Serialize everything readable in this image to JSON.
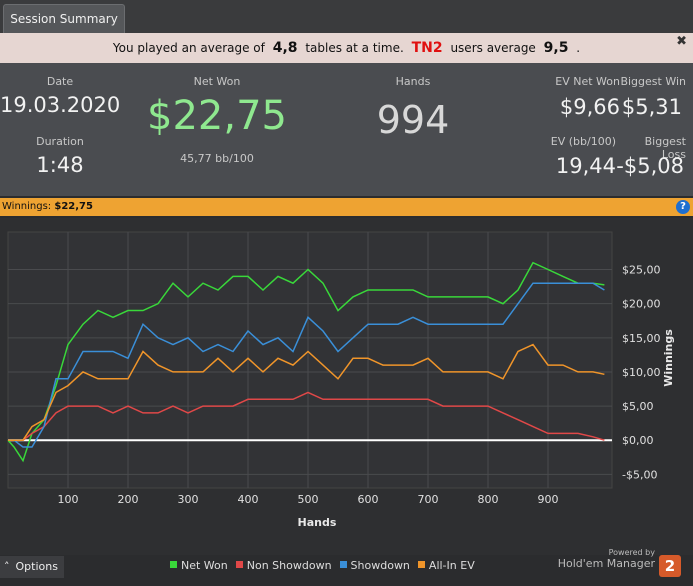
{
  "tab": "Session Summary",
  "banner": {
    "parts": [
      "You played an average of",
      "4,8",
      "tables at a time.",
      "TN2",
      "users average",
      "9,5",
      "."
    ]
  },
  "stats": {
    "date": {
      "label": "Date",
      "value": "19.03.2020"
    },
    "duration": {
      "label": "Duration",
      "value": "1:48"
    },
    "net_won": {
      "label": "Net Won",
      "value": "$22,75",
      "sub": "45,77 bb/100"
    },
    "hands": {
      "label": "Hands",
      "value": "994"
    },
    "ev_net_won": {
      "label": "EV Net Won",
      "value": "$9,66"
    },
    "biggest_win": {
      "label": "Biggest Win",
      "value": "$5,31"
    },
    "ev_bb": {
      "label": "EV (bb/100)",
      "value": "19,44"
    },
    "biggest_loss": {
      "label": "Biggest Loss",
      "value": "-$5,08"
    }
  },
  "winnings_bar": {
    "label": "Winnings:",
    "value": "$22,75"
  },
  "chart_data": {
    "type": "line",
    "xlabel": "Hands",
    "ylabel": "Winnings",
    "x": [
      0,
      10,
      25,
      40,
      60,
      80,
      100,
      125,
      150,
      175,
      200,
      225,
      250,
      275,
      300,
      325,
      350,
      375,
      400,
      425,
      450,
      475,
      500,
      525,
      550,
      575,
      600,
      625,
      650,
      675,
      700,
      725,
      750,
      775,
      800,
      825,
      850,
      875,
      900,
      925,
      950,
      975,
      994
    ],
    "xlim": [
      0,
      1000
    ],
    "xticks": [
      100,
      200,
      300,
      400,
      500,
      600,
      700,
      800,
      900
    ],
    "ylim": [
      -7,
      30.5
    ],
    "yticks": [
      {
        "value": -5,
        "label": "-$5,00"
      },
      {
        "value": 0,
        "label": "$0,00"
      },
      {
        "value": 5,
        "label": "$5,00"
      },
      {
        "value": 10,
        "label": "$10,00"
      },
      {
        "value": 15,
        "label": "$15,00"
      },
      {
        "value": 20,
        "label": "$20,00"
      },
      {
        "value": 25,
        "label": "$25,00"
      }
    ],
    "grid": true,
    "series": [
      {
        "name": "Net Won",
        "color": "#39d83a",
        "values": [
          0,
          -1,
          -3,
          1,
          3,
          8,
          14,
          17,
          19,
          18,
          19,
          19,
          20,
          23,
          21,
          23,
          22,
          24,
          24,
          22,
          24,
          23,
          25,
          23,
          19,
          21,
          22,
          22,
          22,
          22,
          21,
          21,
          21,
          21,
          21,
          20,
          22,
          26,
          25,
          24,
          23,
          23,
          22.75
        ]
      },
      {
        "name": "Non Showdown",
        "color": "#e04848",
        "values": [
          0,
          0,
          0,
          1,
          2,
          4,
          5,
          5,
          5,
          4,
          5,
          4,
          4,
          5,
          4,
          5,
          5,
          5,
          6,
          6,
          6,
          6,
          7,
          6,
          6,
          6,
          6,
          6,
          6,
          6,
          6,
          5,
          5,
          5,
          5,
          4,
          3,
          2,
          1,
          1,
          1,
          0.5,
          0
        ]
      },
      {
        "name": "Showdown",
        "color": "#3a8fd8",
        "values": [
          0,
          0,
          -1,
          -1,
          2,
          9,
          9,
          13,
          13,
          13,
          12,
          17,
          15,
          14,
          15,
          13,
          14,
          13,
          16,
          14,
          15,
          13,
          18,
          16,
          13,
          15,
          17,
          17,
          17,
          18,
          17,
          17,
          17,
          17,
          17,
          17,
          20,
          23,
          23,
          23,
          23,
          23,
          22
        ]
      },
      {
        "name": "All-In EV",
        "color": "#f0952a",
        "values": [
          0,
          0,
          0,
          2,
          3,
          7,
          8,
          10,
          9,
          9,
          9,
          13,
          11,
          10,
          10,
          10,
          12,
          10,
          12,
          10,
          12,
          11,
          13,
          11,
          9,
          12,
          12,
          11,
          11,
          11,
          12,
          10,
          10,
          10,
          10,
          9,
          13,
          14,
          11,
          11,
          10,
          10,
          9.66
        ]
      }
    ]
  },
  "footer": {
    "options": "Options",
    "powered": "Powered by",
    "brand": "Hold'em Manager"
  }
}
